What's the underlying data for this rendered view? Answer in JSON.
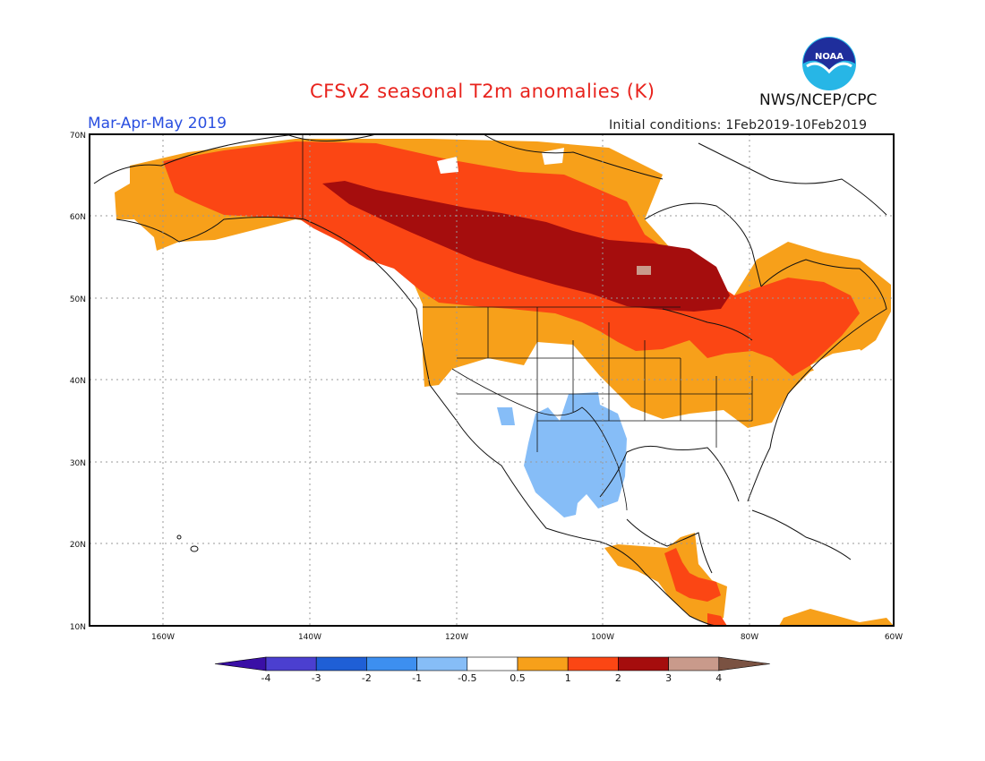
{
  "title": "CFSv2 seasonal T2m anomalies (K)",
  "period": "Mar-Apr-May 2019",
  "initial_conditions": "Initial conditions: 1Feb2019-10Feb2019",
  "agency": "NWS/NCEP/CPC",
  "logo_text": "NOAA",
  "map": {
    "lon_labels": [
      "160W",
      "140W",
      "120W",
      "100W",
      "80W",
      "60W"
    ],
    "lat_labels": [
      "70N",
      "60N",
      "50N",
      "40N",
      "30N",
      "20N",
      "10N"
    ],
    "grid": "dotted"
  },
  "colorbar": {
    "ticks": [
      "-4",
      "-3",
      "-2",
      "-1",
      "-0.5",
      "0.5",
      "1",
      "2",
      "3",
      "4"
    ],
    "colors": [
      "#3a0fa6",
      "#4b3fd0",
      "#1f5fd6",
      "#3d8ff0",
      "#86bdf7",
      "#ffffff",
      "#f7a01a",
      "#fb4614",
      "#a50d0d",
      "#c99a8b",
      "#7a5242"
    ]
  }
}
